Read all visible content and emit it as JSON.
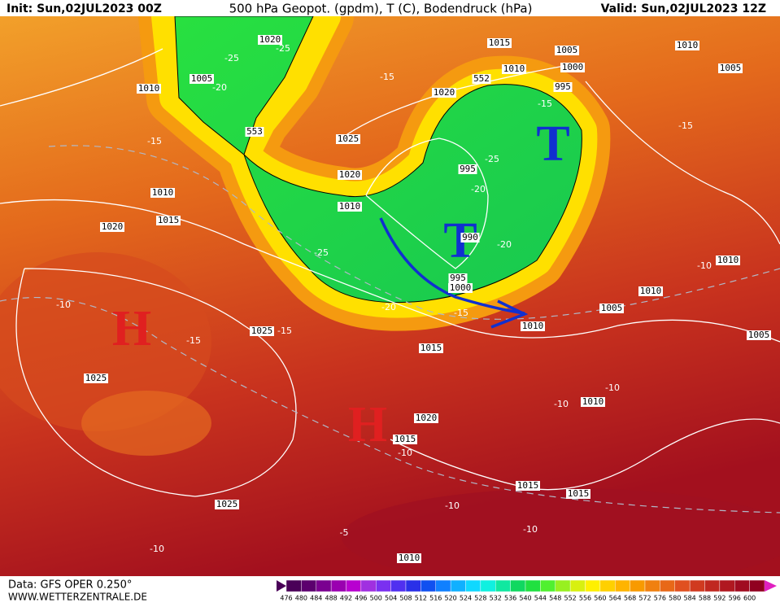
{
  "header": {
    "init": "Init: Sun,02JUL2023 00Z",
    "title": "500 hPa Geopot. (gpdm), T (C), Bodendruck (hPa)",
    "valid": "Valid: Sun,02JUL2023 12Z"
  },
  "footer": {
    "data": "Data: GFS OPER 0.250°",
    "site": "WWW.WETTERZENTRALE.DE"
  },
  "legend": {
    "labels": [
      "476",
      "480",
      "484",
      "488",
      "492",
      "496",
      "500",
      "504",
      "508",
      "512",
      "516",
      "520",
      "524",
      "528",
      "532",
      "536",
      "540",
      "544",
      "548",
      "552",
      "556",
      "560",
      "564",
      "568",
      "572",
      "576",
      "580",
      "584",
      "588",
      "592",
      "596",
      "600"
    ],
    "colors": [
      "#4a0058",
      "#5c006e",
      "#7a0090",
      "#9a00b0",
      "#b800d0",
      "#a030e0",
      "#7a30f0",
      "#5030f0",
      "#2a30e8",
      "#1050f0",
      "#1080ff",
      "#10b0ff",
      "#10d8ff",
      "#10f0e0",
      "#10e8a0",
      "#10d860",
      "#20e040",
      "#50f030",
      "#98f020",
      "#d8f010",
      "#fff000",
      "#ffd000",
      "#ffb400",
      "#f89a00",
      "#f08010",
      "#e86818",
      "#e05020",
      "#d03a20",
      "#c02820",
      "#b01820",
      "#a00c20",
      "#900020"
    ]
  },
  "map": {
    "high_labels": [
      "H",
      "H"
    ],
    "low_labels": [
      "T",
      "T"
    ],
    "isobar_labels": [
      "1020",
      "1005",
      "1010",
      "553",
      "1025",
      "1020",
      "1010",
      "1015",
      "1020",
      "1010",
      "1015",
      "1005",
      "1010",
      "1000",
      "995",
      "1020",
      "1010",
      "1005",
      "995",
      "990",
      "995",
      "1000",
      "1025",
      "1025",
      "1015",
      "1010",
      "1005",
      "1010",
      "1010",
      "1005",
      "1020",
      "1015",
      "1010",
      "1015",
      "1015",
      "1025",
      "1010",
      "552"
    ],
    "temperature_labels": [
      "-25",
      "-25",
      "-20",
      "-15",
      "-15",
      "-15",
      "-15",
      "-25",
      "-20",
      "-25",
      "-20",
      "-20",
      "-15",
      "-10",
      "-15",
      "-15",
      "-10",
      "-10",
      "-10",
      "-10",
      "-10",
      "-10",
      "-5",
      "-10"
    ]
  }
}
